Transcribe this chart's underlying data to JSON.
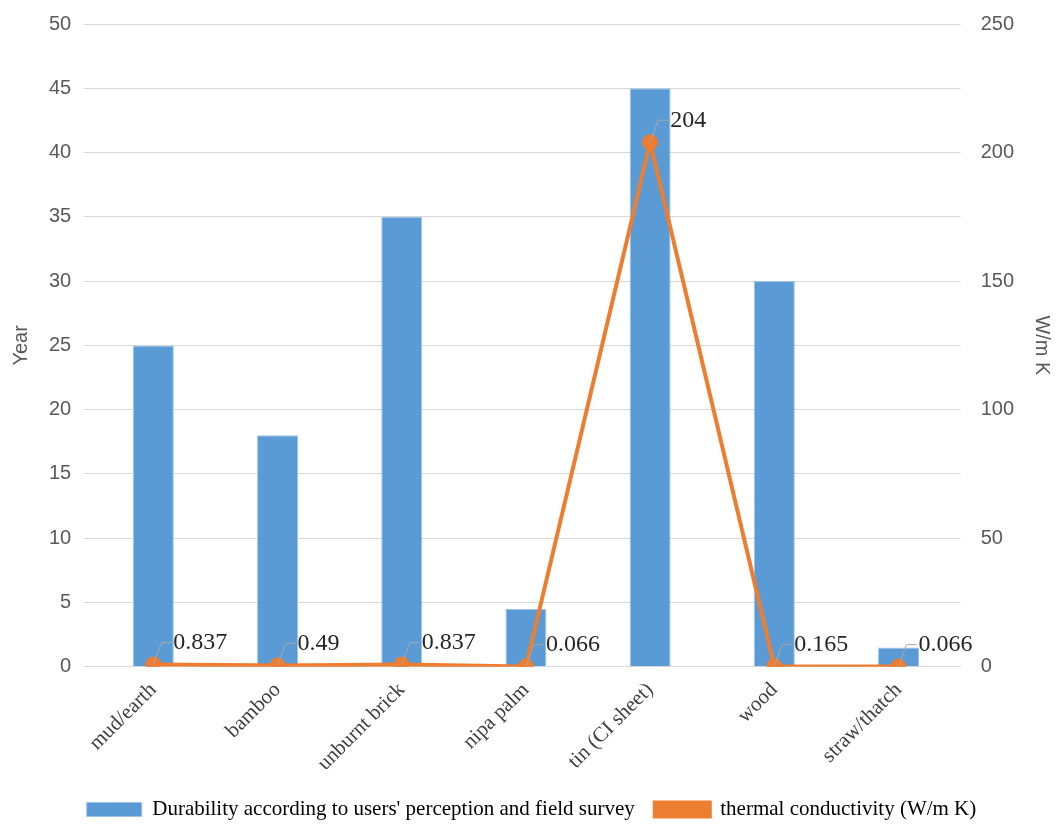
{
  "chart_data": {
    "type": "bar",
    "ylabel": "Year",
    "y2label": "W/m K",
    "categories": [
      "mud/earth",
      "bamboo",
      "unburnt brick",
      "nipa palm",
      "tin (CI sheet)",
      "wood",
      "straw/thatch"
    ],
    "series": [
      {
        "name": "Durability according to users' perception and field survey",
        "color": "#5b9bd5",
        "values": [
          25,
          18,
          35,
          4.5,
          45,
          30,
          1.5
        ]
      },
      {
        "name": "thermal conductivity (W/m K)",
        "type": "line",
        "axis": "y2",
        "color": "#ed7d31",
        "values": [
          0.837,
          0.49,
          0.837,
          0.066,
          204,
          0.165,
          0.066
        ],
        "value_labels": [
          "0.837",
          "0.49",
          "0.837",
          "0.066",
          "204",
          "0.165",
          "0.066"
        ]
      }
    ],
    "ylim": [
      0,
      50
    ],
    "yticks": [
      0,
      5,
      10,
      15,
      20,
      25,
      30,
      35,
      40,
      45,
      50
    ],
    "y2lim": [
      0,
      250
    ],
    "y2ticks": [
      0,
      50,
      100,
      150,
      200,
      250
    ],
    "grid": "y",
    "legend": "bottom",
    "marker": "circle",
    "line_style": "solid"
  }
}
